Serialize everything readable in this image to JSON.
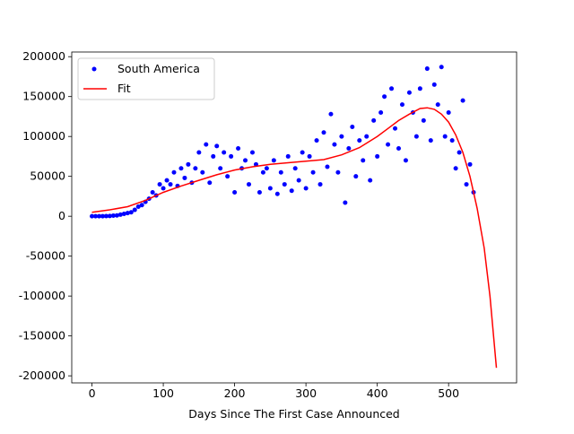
{
  "chart_data": {
    "type": "scatter-fit",
    "x_label": "Days Since The First Case Announced",
    "xlim": [
      -28.35,
      595.35
    ],
    "xticks": [
      0,
      100,
      200,
      300,
      400,
      500
    ],
    "ylim": [
      -208850,
      205850
    ],
    "yticks": [
      -200000,
      -150000,
      -100000,
      -50000,
      0,
      50000,
      100000,
      150000,
      200000
    ],
    "legend": "upper left",
    "series": [
      {
        "name": "South America",
        "kind": "scatter",
        "color": "#0000ff",
        "x": [
          0,
          5,
          10,
          15,
          20,
          25,
          30,
          35,
          40,
          45,
          50,
          55,
          60,
          65,
          70,
          75,
          80,
          85,
          90,
          95,
          100,
          105,
          110,
          115,
          120,
          125,
          130,
          135,
          140,
          145,
          150,
          155,
          160,
          165,
          170,
          175,
          180,
          185,
          190,
          195,
          200,
          205,
          210,
          215,
          220,
          225,
          230,
          235,
          240,
          245,
          250,
          255,
          260,
          265,
          270,
          275,
          280,
          285,
          290,
          295,
          300,
          305,
          310,
          315,
          320,
          325,
          330,
          335,
          340,
          345,
          350,
          355,
          360,
          365,
          370,
          375,
          380,
          385,
          390,
          395,
          400,
          405,
          410,
          415,
          420,
          425,
          430,
          435,
          440,
          445,
          450,
          455,
          460,
          465,
          470,
          475,
          480,
          485,
          490,
          495,
          500,
          505,
          510,
          515,
          520,
          525,
          530,
          535
        ],
        "values": [
          0,
          0,
          0,
          100,
          200,
          300,
          800,
          1000,
          2000,
          3000,
          4000,
          5000,
          8000,
          12000,
          14000,
          18000,
          22000,
          30000,
          26000,
          40000,
          35000,
          45000,
          40000,
          55000,
          38000,
          60000,
          48000,
          65000,
          42000,
          60000,
          80000,
          55000,
          90000,
          42000,
          75000,
          88000,
          60000,
          80000,
          50000,
          75000,
          30000,
          85000,
          60000,
          70000,
          40000,
          80000,
          65000,
          30000,
          55000,
          60000,
          35000,
          70000,
          28000,
          55000,
          40000,
          75000,
          32000,
          60000,
          45000,
          80000,
          35000,
          75000,
          55000,
          95000,
          40000,
          105000,
          62000,
          128000,
          90000,
          55000,
          100000,
          17000,
          85000,
          112000,
          50000,
          95000,
          70000,
          100000,
          45000,
          120000,
          75000,
          130000,
          150000,
          90000,
          160000,
          110000,
          85000,
          140000,
          70000,
          155000,
          130000,
          100000,
          160000,
          120000,
          185000,
          95000,
          165000,
          140000,
          187000,
          100000,
          130000,
          95000,
          60000,
          80000,
          145000,
          40000,
          65000,
          30000
        ]
      },
      {
        "name": "Fit",
        "kind": "line",
        "color": "#ff0000",
        "x": [
          0,
          25,
          50,
          75,
          100,
          125,
          150,
          175,
          200,
          225,
          250,
          275,
          300,
          325,
          350,
          375,
          400,
          415,
          430,
          445,
          460,
          470,
          480,
          490,
          500,
          510,
          520,
          530,
          540,
          550,
          558,
          567
        ],
        "values": [
          5000,
          8000,
          12000,
          20000,
          30000,
          38000,
          45000,
          52000,
          58000,
          62000,
          65000,
          67000,
          69000,
          71000,
          77000,
          86000,
          100000,
          110000,
          120000,
          128000,
          135000,
          136000,
          134000,
          128000,
          118000,
          102000,
          80000,
          50000,
          10000,
          -40000,
          -100000,
          -190000
        ]
      }
    ]
  }
}
